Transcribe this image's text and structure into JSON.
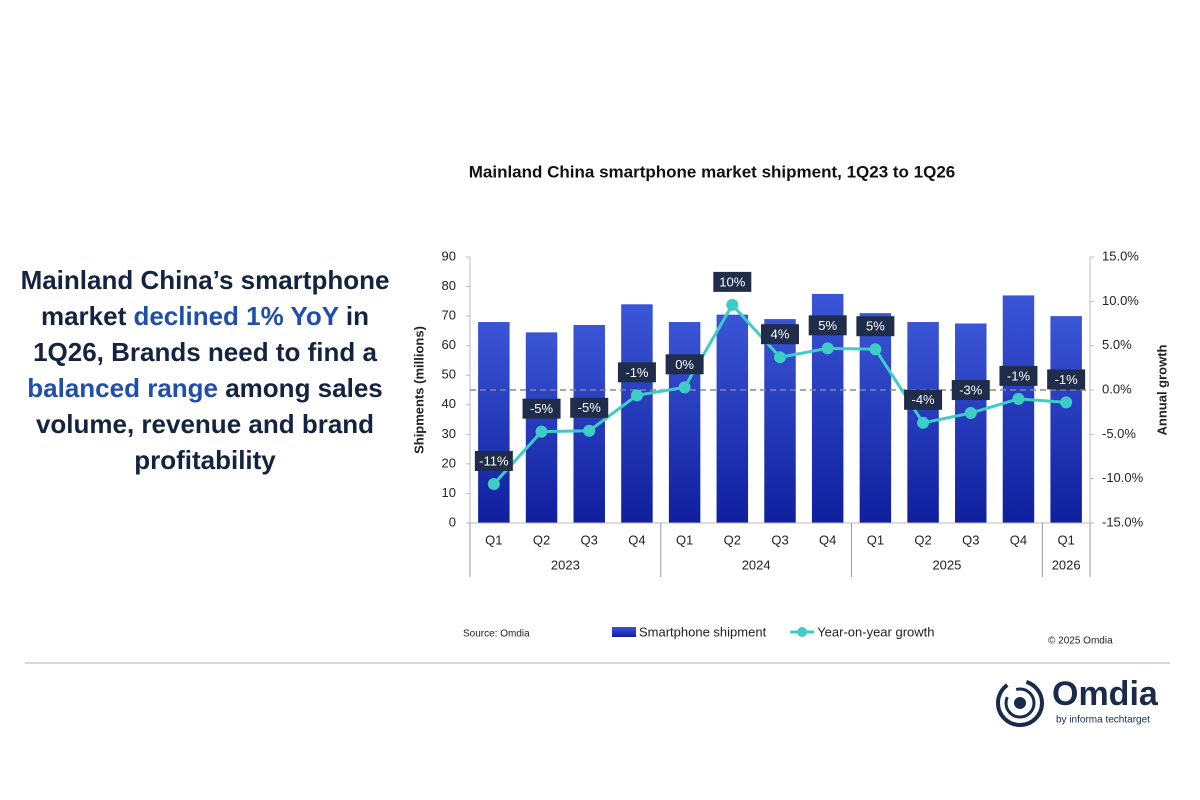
{
  "headline": [
    {
      "text": "Mainland China’s smartphone market ",
      "emphasis": false
    },
    {
      "text": "declined 1% YoY",
      "emphasis": true
    },
    {
      "text": " in 1Q26, Brands need to find a ",
      "emphasis": false
    },
    {
      "text": "balanced range",
      "emphasis": true
    },
    {
      "text": " among sales volume, revenue and brand profitability",
      "emphasis": false
    }
  ],
  "chart_data": {
    "type": "bar",
    "title": "Mainland China smartphone market shipment, 1Q23 to 1Q26",
    "y_label": "Shipments (millions)",
    "y2_label": "Annual growth",
    "groups": [
      {
        "label": "2023",
        "categories": [
          "Q1",
          "Q2",
          "Q3",
          "Q4"
        ]
      },
      {
        "label": "2024",
        "categories": [
          "Q1",
          "Q2",
          "Q3",
          "Q4"
        ]
      },
      {
        "label": "2025",
        "categories": [
          "Q1",
          "Q2",
          "Q3",
          "Q4"
        ]
      },
      {
        "label": "2026",
        "categories": [
          "Q1"
        ]
      }
    ],
    "series": [
      {
        "name": "Smartphone shipment",
        "type": "bar",
        "color": "#1f35c0",
        "values": [
          68,
          64.5,
          67,
          74,
          68,
          70.5,
          69,
          77.5,
          71,
          68,
          67.5,
          77,
          70
        ]
      },
      {
        "name": "Year-on-year growth",
        "type": "line",
        "axis": "y2",
        "color": "#3ecdc6",
        "values": [
          -10.6,
          -4.7,
          -4.6,
          -0.6,
          0.3,
          9.6,
          3.7,
          4.7,
          4.6,
          -3.7,
          -2.6,
          -1.0,
          -1.4
        ],
        "value_labels": [
          "-11%",
          "-5%",
          "-5%",
          "-1%",
          "0%",
          "10%",
          "4%",
          "5%",
          "5%",
          "-4%",
          "-3%",
          "-1%",
          "-1%"
        ]
      }
    ],
    "ylim": [
      0,
      90
    ],
    "yticks": [
      0,
      10,
      20,
      30,
      40,
      50,
      60,
      70,
      80,
      90
    ],
    "y2lim": [
      -15,
      15
    ],
    "y2ticks": [
      {
        "value": -15,
        "label": "-15.0%"
      },
      {
        "value": -10,
        "label": "-10.0%"
      },
      {
        "value": -5,
        "label": "-5.0%"
      },
      {
        "value": 0,
        "label": "0.0%"
      },
      {
        "value": 5,
        "label": "5.0%"
      },
      {
        "value": 10,
        "label": "10.0%"
      },
      {
        "value": 15,
        "label": "15.0%"
      }
    ],
    "y2_reference": 0,
    "source": "Source: Omdia",
    "copyright": "© 2025 Omdia"
  },
  "logo": {
    "name": "Omdia",
    "tagline": "by informa techtarget"
  }
}
